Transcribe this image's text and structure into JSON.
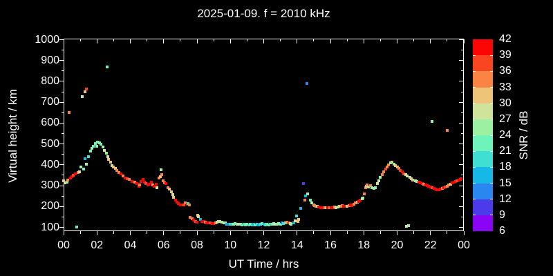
{
  "title": "2025-01-09. f = 2010 kHz",
  "colors": {
    "background": "#000000",
    "foreground": "#ffffff"
  },
  "axes": {
    "x": {
      "label": "UT Time / hrs",
      "range_hours": [
        0,
        24
      ],
      "major_tick_step_hours": 2,
      "minor_tick_step_hours": 1,
      "tick_labels": [
        "00",
        "02",
        "04",
        "06",
        "08",
        "10",
        "12",
        "14",
        "16",
        "18",
        "20",
        "22",
        "00"
      ]
    },
    "y": {
      "label": "Virtual height / km",
      "range_km": [
        82,
        1005
      ],
      "major_tick_step_km": 100,
      "minor_tick_step_km": 50,
      "tick_labels": [
        "100",
        "200",
        "300",
        "400",
        "500",
        "600",
        "700",
        "800",
        "900",
        "1000"
      ],
      "tick_values": [
        100,
        200,
        300,
        400,
        500,
        600,
        700,
        800,
        900,
        1000
      ]
    }
  },
  "colorbar": {
    "label": "SNR / dB",
    "tick_labels": [
      "42",
      "39",
      "36",
      "33",
      "30",
      "27",
      "24",
      "21",
      "18",
      "15",
      "12",
      "9",
      "6"
    ],
    "segments_top_to_bottom": [
      {
        "range": [
          39,
          42
        ],
        "color": "#fb0505"
      },
      {
        "range": [
          36,
          39
        ],
        "color": "#fa4521"
      },
      {
        "range": [
          33,
          36
        ],
        "color": "#fb8445"
      },
      {
        "range": [
          30,
          33
        ],
        "color": "#eec478"
      },
      {
        "range": [
          27,
          30
        ],
        "color": "#cfe49a"
      },
      {
        "range": [
          24,
          27
        ],
        "color": "#9cf0a2"
      },
      {
        "range": [
          21,
          24
        ],
        "color": "#6ef3bb"
      },
      {
        "range": [
          18,
          21
        ],
        "color": "#3fdfd4"
      },
      {
        "range": [
          15,
          18
        ],
        "color": "#16b8e6"
      },
      {
        "range": [
          12,
          15
        ],
        "color": "#2a87f0"
      },
      {
        "range": [
          9,
          12
        ],
        "color": "#4b3bea"
      },
      {
        "range": [
          6,
          9
        ],
        "color": "#8a05f5"
      }
    ]
  },
  "chart_data": {
    "type": "scatter",
    "title": "2025-01-09. f = 2010 kHz",
    "xlabel": "UT Time / hrs",
    "ylabel": "Virtual height / km",
    "color_label": "SNR / dB",
    "xlim": [
      0,
      24
    ],
    "ylim": [
      82,
      1005
    ],
    "point_format": "[hour_UT, virtual_height_km, snr_dB]",
    "points": [
      [
        0.0,
        322,
        31
      ],
      [
        0.1,
        315,
        28
      ],
      [
        0.2,
        318,
        25
      ],
      [
        0.25,
        326,
        34
      ],
      [
        0.35,
        651,
        34
      ],
      [
        0.4,
        338,
        40
      ],
      [
        0.5,
        344,
        40
      ],
      [
        0.6,
        350,
        37
      ],
      [
        0.7,
        355,
        40
      ],
      [
        0.8,
        102,
        22
      ],
      [
        0.85,
        362,
        34
      ],
      [
        0.95,
        368,
        28
      ],
      [
        1.05,
        388,
        25
      ],
      [
        1.1,
        727,
        28
      ],
      [
        1.2,
        380,
        22
      ],
      [
        1.3,
        750,
        31
      ],
      [
        1.35,
        762,
        37
      ],
      [
        1.35,
        402,
        25
      ],
      [
        1.3,
        428,
        16
      ],
      [
        1.5,
        438,
        19
      ],
      [
        1.6,
        464,
        22
      ],
      [
        1.7,
        478,
        25
      ],
      [
        1.8,
        490,
        22
      ],
      [
        1.9,
        502,
        22
      ],
      [
        2.0,
        490,
        25
      ],
      [
        2.05,
        510,
        22
      ],
      [
        2.15,
        505,
        25
      ],
      [
        2.25,
        498,
        22
      ],
      [
        2.35,
        484,
        25
      ],
      [
        2.45,
        468,
        28
      ],
      [
        2.55,
        455,
        25
      ],
      [
        2.6,
        870,
        23
      ],
      [
        2.65,
        438,
        28
      ],
      [
        2.7,
        425,
        31
      ],
      [
        2.8,
        412,
        31
      ],
      [
        2.9,
        396,
        28
      ],
      [
        3.0,
        390,
        31
      ],
      [
        3.1,
        384,
        31
      ],
      [
        3.2,
        372,
        34
      ],
      [
        3.3,
        362,
        34
      ],
      [
        3.45,
        355,
        40
      ],
      [
        3.55,
        345,
        34
      ],
      [
        3.7,
        338,
        40
      ],
      [
        3.8,
        334,
        37
      ],
      [
        3.95,
        330,
        34
      ],
      [
        4.1,
        320,
        40
      ],
      [
        4.25,
        316,
        34
      ],
      [
        4.4,
        310,
        40
      ],
      [
        4.5,
        297,
        40
      ],
      [
        4.55,
        303,
        34
      ],
      [
        4.65,
        320,
        40
      ],
      [
        4.75,
        330,
        40
      ],
      [
        4.85,
        317,
        40
      ],
      [
        4.95,
        310,
        37
      ],
      [
        5.05,
        303,
        40
      ],
      [
        5.15,
        307,
        40
      ],
      [
        5.25,
        317,
        40
      ],
      [
        5.35,
        303,
        34
      ],
      [
        5.45,
        297,
        40
      ],
      [
        5.55,
        307,
        40
      ],
      [
        5.6,
        290,
        28
      ],
      [
        5.7,
        337,
        34
      ],
      [
        5.8,
        343,
        31
      ],
      [
        5.85,
        376,
        25
      ],
      [
        5.9,
        353,
        34
      ],
      [
        5.95,
        323,
        34
      ],
      [
        6.05,
        313,
        34
      ],
      [
        6.15,
        310,
        40
      ],
      [
        6.25,
        290,
        34
      ],
      [
        6.35,
        283,
        31
      ],
      [
        6.45,
        272,
        31
      ],
      [
        6.55,
        258,
        28
      ],
      [
        6.6,
        244,
        31
      ],
      [
        6.7,
        231,
        40
      ],
      [
        6.8,
        221,
        40
      ],
      [
        6.9,
        214,
        40
      ],
      [
        7.0,
        208,
        40
      ],
      [
        7.1,
        208,
        40
      ],
      [
        7.2,
        208,
        37
      ],
      [
        7.3,
        217,
        34
      ],
      [
        7.4,
        211,
        40
      ],
      [
        7.45,
        214,
        19
      ],
      [
        7.55,
        208,
        34
      ],
      [
        7.6,
        148,
        34
      ],
      [
        7.7,
        141,
        34
      ],
      [
        7.8,
        135,
        40
      ],
      [
        7.9,
        128,
        37
      ],
      [
        8.0,
        125,
        40
      ],
      [
        8.05,
        158,
        31
      ],
      [
        8.1,
        152,
        28
      ],
      [
        8.2,
        138,
        16
      ],
      [
        8.3,
        128,
        40
      ],
      [
        8.4,
        128,
        40
      ],
      [
        8.5,
        125,
        34
      ],
      [
        8.6,
        122,
        40
      ],
      [
        8.7,
        122,
        40
      ],
      [
        8.8,
        122,
        37
      ],
      [
        8.9,
        118,
        40
      ],
      [
        9.0,
        118,
        40
      ],
      [
        9.1,
        122,
        34
      ],
      [
        9.2,
        125,
        28
      ],
      [
        9.3,
        128,
        25
      ],
      [
        9.35,
        128,
        28
      ],
      [
        9.5,
        125,
        25
      ],
      [
        9.6,
        122,
        28
      ],
      [
        9.7,
        122,
        25
      ],
      [
        9.8,
        115,
        16
      ],
      [
        9.9,
        115,
        13
      ],
      [
        10.0,
        115,
        19
      ],
      [
        10.1,
        115,
        19
      ],
      [
        10.2,
        115,
        25
      ],
      [
        10.3,
        118,
        22
      ],
      [
        10.4,
        115,
        25
      ],
      [
        10.5,
        115,
        28
      ],
      [
        10.6,
        115,
        25
      ],
      [
        10.7,
        112,
        22
      ],
      [
        10.8,
        115,
        19
      ],
      [
        10.9,
        112,
        22
      ],
      [
        11.0,
        115,
        25
      ],
      [
        11.1,
        112,
        19
      ],
      [
        11.2,
        115,
        22
      ],
      [
        11.3,
        112,
        19
      ],
      [
        11.4,
        115,
        16
      ],
      [
        11.5,
        112,
        22
      ],
      [
        11.6,
        115,
        19
      ],
      [
        11.7,
        112,
        16
      ],
      [
        11.8,
        115,
        19
      ],
      [
        11.9,
        118,
        22
      ],
      [
        12.0,
        115,
        16
      ],
      [
        12.1,
        112,
        19
      ],
      [
        12.2,
        115,
        22
      ],
      [
        12.3,
        112,
        25
      ],
      [
        12.4,
        115,
        19
      ],
      [
        12.5,
        115,
        22
      ],
      [
        12.6,
        118,
        25
      ],
      [
        12.7,
        115,
        28
      ],
      [
        12.8,
        115,
        22
      ],
      [
        12.9,
        118,
        25
      ],
      [
        13.0,
        115,
        22
      ],
      [
        13.1,
        122,
        13
      ],
      [
        13.2,
        118,
        19
      ],
      [
        13.3,
        122,
        22
      ],
      [
        13.4,
        125,
        34
      ],
      [
        13.5,
        122,
        37
      ],
      [
        13.6,
        118,
        28
      ],
      [
        13.65,
        115,
        25
      ],
      [
        13.8,
        122,
        16
      ],
      [
        13.9,
        131,
        28
      ],
      [
        13.95,
        155,
        19
      ],
      [
        14.05,
        128,
        31
      ],
      [
        14.1,
        138,
        31
      ],
      [
        14.2,
        190,
        16
      ],
      [
        14.4,
        310,
        10
      ],
      [
        14.45,
        230,
        34
      ],
      [
        14.5,
        249,
        16
      ],
      [
        14.6,
        790,
        13
      ],
      [
        14.65,
        262,
        25
      ],
      [
        14.8,
        232,
        22
      ],
      [
        14.9,
        216,
        25
      ],
      [
        15.0,
        207,
        31
      ],
      [
        15.05,
        204,
        34
      ],
      [
        15.15,
        201,
        34
      ],
      [
        15.2,
        201,
        28
      ],
      [
        15.3,
        197,
        40
      ],
      [
        15.4,
        194,
        40
      ],
      [
        15.5,
        194,
        40
      ],
      [
        15.6,
        194,
        40
      ],
      [
        15.65,
        194,
        34
      ],
      [
        15.75,
        194,
        31
      ],
      [
        15.85,
        194,
        40
      ],
      [
        15.95,
        194,
        34
      ],
      [
        16.05,
        194,
        40
      ],
      [
        16.15,
        194,
        40
      ],
      [
        16.25,
        197,
        34
      ],
      [
        16.35,
        194,
        28
      ],
      [
        16.45,
        197,
        25
      ],
      [
        16.55,
        201,
        31
      ],
      [
        16.65,
        201,
        34
      ],
      [
        16.7,
        204,
        34
      ],
      [
        16.8,
        201,
        40
      ],
      [
        16.9,
        201,
        40
      ],
      [
        17.0,
        201,
        31
      ],
      [
        17.1,
        204,
        34
      ],
      [
        17.2,
        207,
        40
      ],
      [
        17.3,
        204,
        40
      ],
      [
        17.4,
        211,
        34
      ],
      [
        17.5,
        216,
        34
      ],
      [
        17.6,
        221,
        31
      ],
      [
        17.7,
        225,
        40
      ],
      [
        17.8,
        232,
        40
      ],
      [
        17.9,
        236,
        25
      ],
      [
        17.95,
        242,
        25
      ],
      [
        18.05,
        262,
        34
      ],
      [
        18.1,
        290,
        34
      ],
      [
        18.15,
        297,
        31
      ],
      [
        18.2,
        303,
        34
      ],
      [
        18.3,
        295,
        25
      ],
      [
        18.4,
        300,
        34
      ],
      [
        18.5,
        290,
        25
      ],
      [
        18.6,
        287,
        25
      ],
      [
        18.7,
        291,
        25
      ],
      [
        18.8,
        310,
        28
      ],
      [
        18.9,
        323,
        28
      ],
      [
        19.0,
        340,
        25
      ],
      [
        19.1,
        352,
        34
      ],
      [
        19.2,
        365,
        34
      ],
      [
        19.3,
        378,
        37
      ],
      [
        19.4,
        390,
        34
      ],
      [
        19.5,
        400,
        34
      ],
      [
        19.6,
        408,
        25
      ],
      [
        19.7,
        412,
        31
      ],
      [
        19.8,
        404,
        25
      ],
      [
        19.9,
        395,
        31
      ],
      [
        20.0,
        390,
        31
      ],
      [
        20.1,
        383,
        34
      ],
      [
        20.2,
        373,
        37
      ],
      [
        20.3,
        366,
        40
      ],
      [
        20.4,
        358,
        37
      ],
      [
        20.5,
        352,
        28
      ],
      [
        20.55,
        105,
        28
      ],
      [
        20.6,
        346,
        28
      ],
      [
        20.7,
        108,
        25
      ],
      [
        20.75,
        340,
        25
      ],
      [
        20.85,
        333,
        31
      ],
      [
        20.95,
        328,
        31
      ],
      [
        21.1,
        323,
        25
      ],
      [
        21.2,
        320,
        25
      ],
      [
        21.3,
        317,
        40
      ],
      [
        21.4,
        313,
        40
      ],
      [
        21.5,
        310,
        40
      ],
      [
        21.6,
        307,
        34
      ],
      [
        21.7,
        303,
        40
      ],
      [
        21.8,
        300,
        40
      ],
      [
        21.9,
        297,
        40
      ],
      [
        22.0,
        293,
        40
      ],
      [
        22.1,
        608,
        25
      ],
      [
        22.1,
        290,
        37
      ],
      [
        22.2,
        287,
        40
      ],
      [
        22.3,
        284,
        40
      ],
      [
        22.4,
        281,
        40
      ],
      [
        22.5,
        280,
        40
      ],
      [
        22.6,
        283,
        40
      ],
      [
        22.7,
        287,
        34
      ],
      [
        22.8,
        290,
        40
      ],
      [
        22.9,
        294,
        37
      ],
      [
        23.0,
        565,
        34
      ],
      [
        23.0,
        297,
        34
      ],
      [
        23.1,
        303,
        34
      ],
      [
        23.2,
        308,
        31
      ],
      [
        23.3,
        313,
        40
      ],
      [
        23.4,
        316,
        40
      ],
      [
        23.5,
        320,
        40
      ],
      [
        23.6,
        323,
        37
      ],
      [
        23.7,
        327,
        40
      ],
      [
        23.8,
        330,
        40
      ],
      [
        23.85,
        333,
        40
      ]
    ]
  }
}
